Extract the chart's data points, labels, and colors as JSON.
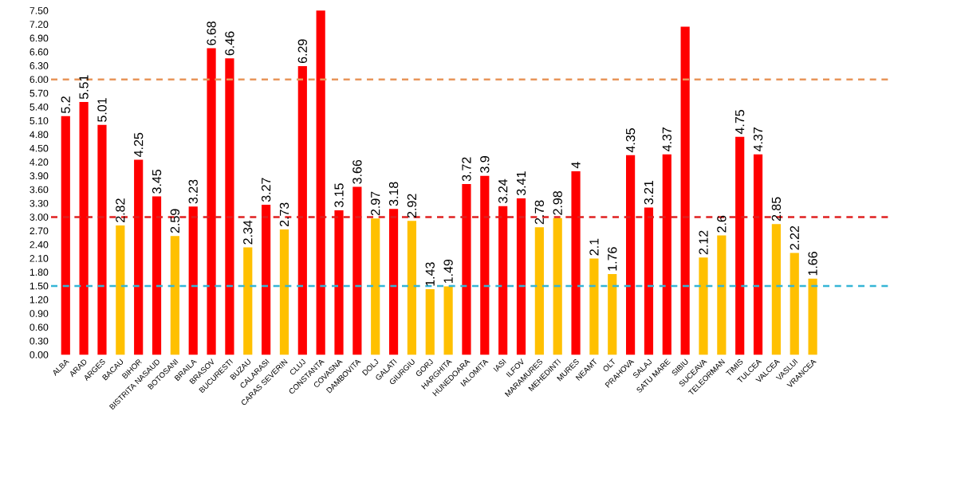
{
  "chart_data": {
    "type": "bar",
    "categories": [
      "ALBA",
      "ARAD",
      "ARGES",
      "BACAU",
      "BIHOR",
      "BISTRITA NASAUD",
      "BOTOSANI",
      "BRAILA",
      "BRASOV",
      "BUCURESTI",
      "BUZAU",
      "CALARASI",
      "CARAS SEVERIN",
      "CLUJ",
      "CONSTANTA",
      "COVASNA",
      "DAMBOVITA",
      "DOLJ",
      "GALATI",
      "GIURGIU",
      "GORJ",
      "HARGHITA",
      "HUNEDOARA",
      "IALOMITA",
      "IASI",
      "ILFOV",
      "MARAMURES",
      "MEHEDINTI",
      "MURES",
      "NEAMT",
      "OLT",
      "PRAHOVA",
      "SALAJ",
      "SATU MARE",
      "SIBIU",
      "SUCEAVA",
      "TELEORMAN",
      "TIMIS",
      "TULCEA",
      "VALCEA",
      "VASLUI",
      "VRANCEA"
    ],
    "values": [
      5.2,
      5.51,
      5.01,
      2.82,
      4.25,
      3.45,
      2.59,
      3.23,
      6.68,
      6.46,
      2.34,
      3.27,
      2.73,
      6.29,
      7.5,
      3.15,
      3.66,
      2.97,
      3.18,
      2.92,
      1.43,
      1.49,
      3.72,
      3.9,
      3.24,
      3.41,
      2.78,
      2.98,
      4,
      2.1,
      1.76,
      4.35,
      3.21,
      4.37,
      7.15,
      2.12,
      2.6,
      4.75,
      4.37,
      2.85,
      2.22,
      1.66
    ],
    "value_labels": [
      "5.2",
      "5.51",
      "5.01",
      "2.82",
      "4.25",
      "3.45",
      "2.59",
      "3.23",
      "6.68",
      "6.46",
      "2.34",
      "3.27",
      "2.73",
      "6.29",
      null,
      "3.15",
      "3.66",
      "2.97",
      "3.18",
      "2.92",
      "1.43",
      "1.49",
      "3.72",
      "3.9",
      "3.24",
      "3.41",
      "2.78",
      "2.98",
      "4",
      "2.1",
      "1.76",
      "4.35",
      "3.21",
      "4.37",
      null,
      "2.12",
      "2.6",
      "4.75",
      "4.37",
      "2.85",
      "2.22",
      "1.66"
    ],
    "colors": [
      "#ff0000",
      "#ff0000",
      "#ff0000",
      "#ffc000",
      "#ff0000",
      "#ff0000",
      "#ffc000",
      "#ff0000",
      "#ff0000",
      "#ff0000",
      "#ffc000",
      "#ff0000",
      "#ffc000",
      "#ff0000",
      "#ff0000",
      "#ff0000",
      "#ff0000",
      "#ffc000",
      "#ff0000",
      "#ffc000",
      "#ffc000",
      "#ffc000",
      "#ff0000",
      "#ff0000",
      "#ff0000",
      "#ff0000",
      "#ffc000",
      "#ffc000",
      "#ff0000",
      "#ffc000",
      "#ffc000",
      "#ff0000",
      "#ff0000",
      "#ff0000",
      "#ff0000",
      "#ffc000",
      "#ffc000",
      "#ff0000",
      "#ff0000",
      "#ffc000",
      "#ffc000",
      "#ffc000"
    ],
    "ylim": [
      0,
      7.5
    ],
    "yticks": [
      {
        "value": 0,
        "label": "0.00"
      },
      {
        "value": 0.3,
        "label": "0.30"
      },
      {
        "value": 0.6,
        "label": "0.60"
      },
      {
        "value": 0.9,
        "label": "0.90"
      },
      {
        "value": 1.2,
        "label": "1.20"
      },
      {
        "value": 1.5,
        "label": "1.50"
      },
      {
        "value": 1.8,
        "label": "1.80"
      },
      {
        "value": 2.1,
        "label": "2.10"
      },
      {
        "value": 2.4,
        "label": "2.40"
      },
      {
        "value": 2.7,
        "label": "2.70"
      },
      {
        "value": 3.0,
        "label": "3.00"
      },
      {
        "value": 3.3,
        "label": "3.30"
      },
      {
        "value": 3.6,
        "label": "3.60"
      },
      {
        "value": 3.9,
        "label": "3.90"
      },
      {
        "value": 4.2,
        "label": "4.20"
      },
      {
        "value": 4.5,
        "label": "4.50"
      },
      {
        "value": 4.8,
        "label": "4.80"
      },
      {
        "value": 5.1,
        "label": "5.10"
      },
      {
        "value": 5.4,
        "label": "5.40"
      },
      {
        "value": 5.7,
        "label": "5.70"
      },
      {
        "value": 6.0,
        "label": "6.00"
      },
      {
        "value": 6.3,
        "label": "6.30"
      },
      {
        "value": 6.6,
        "label": "6.60"
      },
      {
        "value": 6.9,
        "label": "6.90"
      },
      {
        "value": 7.2,
        "label": "7.20"
      },
      {
        "value": 7.5,
        "label": "7.50"
      }
    ],
    "ref_lines": [
      {
        "axis": "y",
        "value": 6,
        "color": "#e8955a",
        "line_style": "dashed"
      },
      {
        "axis": "y",
        "value": 3,
        "color": "#e02020",
        "line_style": "dashed"
      },
      {
        "axis": "y",
        "value": 1.5,
        "color": "#35b5d5",
        "line_style": "dashed"
      }
    ],
    "grid": false
  }
}
